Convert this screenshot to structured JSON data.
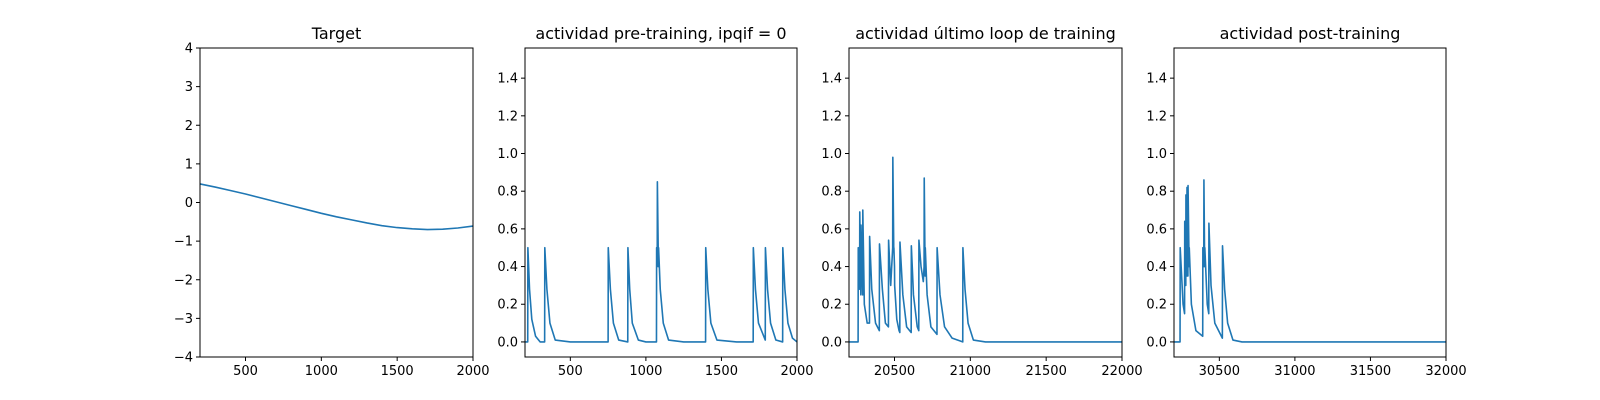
{
  "chart_data": [
    {
      "type": "line",
      "title": "Target",
      "xlabel": "",
      "ylabel": "",
      "xlim": [
        200,
        2000
      ],
      "ylim": [
        -4,
        4
      ],
      "xticks": [
        500,
        1000,
        1500,
        2000
      ],
      "yticks": [
        -4,
        -3,
        -2,
        -1,
        0,
        1,
        2,
        3,
        4
      ],
      "grid": false,
      "series": [
        {
          "color": "#1f77b4",
          "x": [
            200,
            300,
            400,
            500,
            600,
            700,
            800,
            900,
            1000,
            1100,
            1200,
            1300,
            1400,
            1500,
            1600,
            1700,
            1800,
            1900,
            2000
          ],
          "y": [
            0.48,
            0.4,
            0.31,
            0.22,
            0.12,
            0.02,
            -0.08,
            -0.18,
            -0.28,
            -0.37,
            -0.45,
            -0.53,
            -0.6,
            -0.65,
            -0.68,
            -0.7,
            -0.69,
            -0.66,
            -0.61
          ]
        }
      ]
    },
    {
      "type": "line",
      "title": "actividad pre-training, ipqif = 0",
      "xlabel": "",
      "ylabel": "",
      "xlim": [
        200,
        2000
      ],
      "ylim": [
        -0.08,
        1.56
      ],
      "xticks": [
        500,
        1000,
        1500,
        2000
      ],
      "yticks": [
        0.0,
        0.2,
        0.4,
        0.6,
        0.8,
        1.0,
        1.2,
        1.4
      ],
      "grid": false,
      "series": [
        {
          "color": "#1f77b4",
          "x": [
            200,
            218,
            219,
            230,
            245,
            270,
            300,
            330,
            331,
            345,
            365,
            400,
            500,
            600,
            700,
            750,
            751,
            765,
            785,
            820,
            880,
            881,
            893,
            910,
            950,
            1000,
            1060,
            1070,
            1071,
            1075,
            1076,
            1083,
            1084,
            1095,
            1115,
            1150,
            1250,
            1350,
            1395,
            1396,
            1410,
            1430,
            1470,
            1600,
            1700,
            1710,
            1711,
            1725,
            1745,
            1790,
            1791,
            1805,
            1825,
            1860,
            1905,
            1906,
            1920,
            1940,
            1970,
            2000
          ],
          "y": [
            0.0,
            0.0,
            0.5,
            0.28,
            0.12,
            0.03,
            0.0,
            0.0,
            0.5,
            0.28,
            0.1,
            0.01,
            0.0,
            0.0,
            0.0,
            0.0,
            0.5,
            0.28,
            0.1,
            0.01,
            0.0,
            0.5,
            0.28,
            0.1,
            0.01,
            0.0,
            0.0,
            0.0,
            0.5,
            0.4,
            0.85,
            0.4,
            0.5,
            0.28,
            0.1,
            0.01,
            0.0,
            0.0,
            0.0,
            0.5,
            0.28,
            0.1,
            0.01,
            0.0,
            0.0,
            0.0,
            0.5,
            0.28,
            0.1,
            0.01,
            0.5,
            0.28,
            0.1,
            0.01,
            0.0,
            0.5,
            0.28,
            0.1,
            0.02,
            0.0
          ]
        }
      ]
    },
    {
      "type": "line",
      "title": "actividad último loop de training",
      "xlabel": "",
      "ylabel": "",
      "xlim": [
        20200,
        22000
      ],
      "ylim": [
        -0.08,
        1.56
      ],
      "xticks": [
        20500,
        21000,
        21500,
        22000
      ],
      "yticks": [
        0.0,
        0.2,
        0.4,
        0.6,
        0.8,
        1.0,
        1.2,
        1.4
      ],
      "grid": false,
      "series": [
        {
          "color": "#1f77b4",
          "x": [
            20200,
            20250,
            20260,
            20261,
            20270,
            20271,
            20278,
            20279,
            20290,
            20291,
            20300,
            20301,
            20320,
            20335,
            20336,
            20350,
            20375,
            20400,
            20401,
            20420,
            20440,
            20460,
            20461,
            20475,
            20488,
            20489,
            20495,
            20496,
            20500,
            20501,
            20515,
            20530,
            20535,
            20536,
            20555,
            20580,
            20610,
            20611,
            20625,
            20650,
            20660,
            20661,
            20675,
            20690,
            20695,
            20696,
            20702,
            20703,
            20715,
            20740,
            20780,
            20781,
            20800,
            20830,
            20880,
            20950,
            20951,
            20965,
            20985,
            21020,
            21100,
            21300,
            21500,
            21700,
            22000
          ],
          "y": [
            0.0,
            0.0,
            0.0,
            0.5,
            0.28,
            0.69,
            0.25,
            0.62,
            0.25,
            0.7,
            0.25,
            0.2,
            0.1,
            0.1,
            0.56,
            0.28,
            0.1,
            0.06,
            0.52,
            0.28,
            0.1,
            0.08,
            0.54,
            0.3,
            0.5,
            0.98,
            0.5,
            0.5,
            0.4,
            0.3,
            0.12,
            0.06,
            0.05,
            0.53,
            0.25,
            0.08,
            0.05,
            0.51,
            0.25,
            0.08,
            0.06,
            0.54,
            0.4,
            0.32,
            0.4,
            0.87,
            0.35,
            0.5,
            0.25,
            0.08,
            0.04,
            0.5,
            0.25,
            0.08,
            0.02,
            0.0,
            0.5,
            0.28,
            0.1,
            0.01,
            0.0,
            0.0,
            0.0,
            0.0,
            0.0
          ]
        }
      ]
    },
    {
      "type": "line",
      "title": "actividad post-training",
      "xlabel": "",
      "ylabel": "",
      "xlim": [
        30200,
        32000
      ],
      "ylim": [
        -0.08,
        1.56
      ],
      "xticks": [
        30500,
        31000,
        31500,
        32000
      ],
      "yticks": [
        0.0,
        0.2,
        0.4,
        0.6,
        0.8,
        1.0,
        1.2,
        1.4
      ],
      "grid": false,
      "series": [
        {
          "color": "#1f77b4",
          "x": [
            30200,
            30240,
            30241,
            30260,
            30270,
            30271,
            30278,
            30279,
            30285,
            30286,
            30292,
            30293,
            30300,
            30301,
            30315,
            30345,
            30360,
            30390,
            30391,
            30397,
            30398,
            30403,
            30404,
            30420,
            30430,
            30431,
            30445,
            30470,
            30520,
            30521,
            30535,
            30555,
            30590,
            30650,
            30800,
            31000,
            31200,
            31500,
            31800,
            32000
          ],
          "y": [
            0.0,
            0.0,
            0.5,
            0.2,
            0.15,
            0.64,
            0.3,
            0.78,
            0.35,
            0.82,
            0.35,
            0.83,
            0.4,
            0.5,
            0.2,
            0.06,
            0.05,
            0.03,
            0.5,
            0.4,
            0.86,
            0.4,
            0.5,
            0.2,
            0.15,
            0.63,
            0.3,
            0.1,
            0.02,
            0.51,
            0.28,
            0.1,
            0.01,
            0.0,
            0.0,
            0.0,
            0.0,
            0.0,
            0.0,
            0.0
          ]
        }
      ]
    }
  ]
}
